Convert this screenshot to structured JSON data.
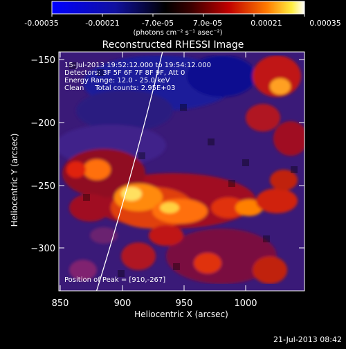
{
  "colorbar": {
    "tick_labels": [
      "-0.00035",
      "-0.00021",
      "-7.0e-05",
      "7.0e-05",
      "0.00021",
      "0.00035"
    ],
    "unit_label": "(photons cm⁻² s⁻¹ asec⁻²)",
    "range": [
      -0.00035,
      0.00035
    ],
    "colormap": "blue-black-red-yellow-white"
  },
  "title": "Reconstructed RHESSI Image",
  "info": {
    "line1": "15-Jul-2013 19:52:12.000 to 19:54:12.000",
    "line2": "Detectors: 3F 5F 6F 7F 8F 9F, Att 0",
    "line3": "Energy Range: 12.0 - 25.0 keV",
    "line4": "Clean     Total counts: 2.95E+03"
  },
  "peak_label": "Position of Peak = [910,-267]",
  "peak": {
    "x": 910,
    "y": -267
  },
  "axes": {
    "x": {
      "label": "Heliocentric X (arcsec)",
      "range": [
        848,
        1036
      ],
      "ticks": [
        850,
        900,
        950,
        1000
      ],
      "tick_labels": [
        "850",
        "900",
        "950",
        "1000"
      ]
    },
    "y": {
      "label": "Heliocentric Y (arcsec)",
      "range": [
        -335,
        -144
      ],
      "ticks": [
        -150,
        -200,
        -250,
        -300
      ],
      "tick_labels": [
        "−150",
        "−200",
        "−250",
        "−300"
      ]
    }
  },
  "footer_date": "21-Jul-2013 08:42"
}
